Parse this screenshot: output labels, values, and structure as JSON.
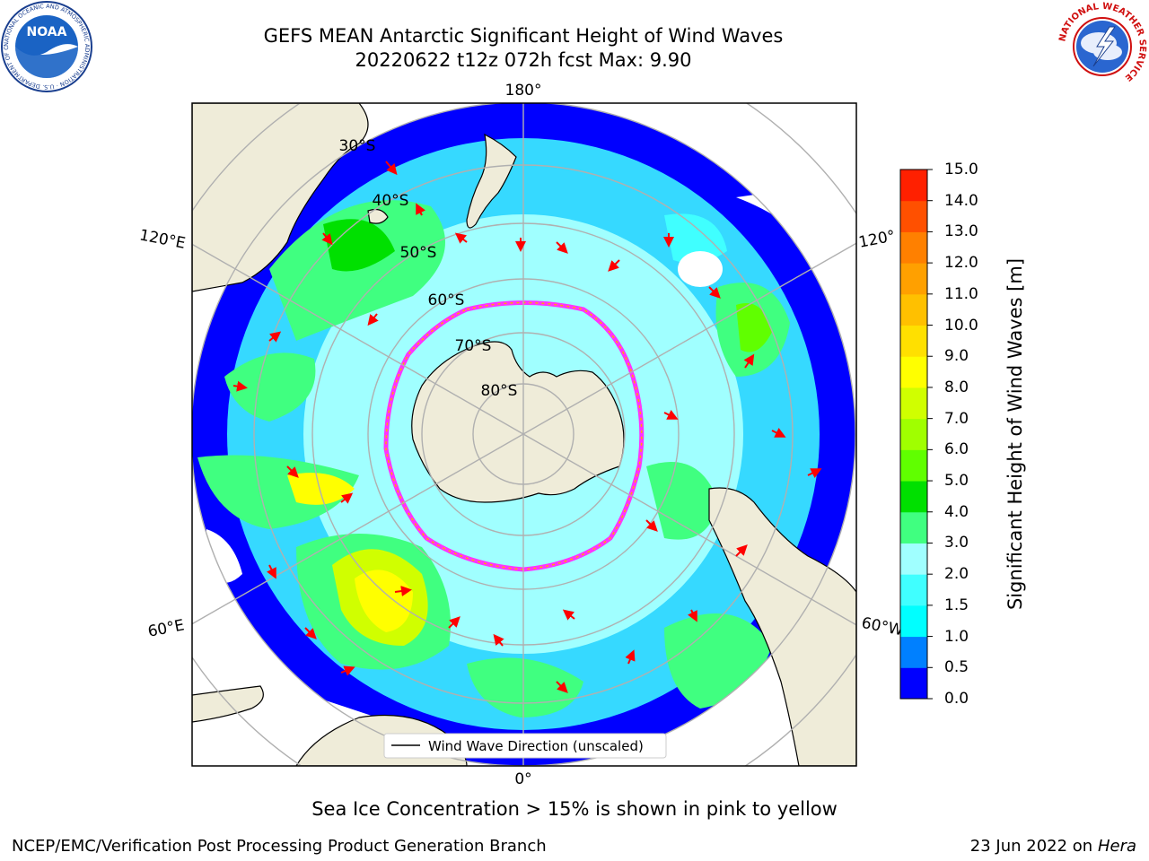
{
  "title": {
    "line1": "GEFS MEAN Antarctic Significant Height of Wind Waves",
    "line2": "20220622 t12z 072h fcst   Max: 9.90"
  },
  "map": {
    "projection": "south-polar-stereographic",
    "longitude_labels": [
      "180°",
      "120°E",
      "120°",
      "60°E",
      "60°W",
      "0°"
    ],
    "latitude_labels": [
      "30°S",
      "40°S",
      "50°S",
      "60°S",
      "70°S",
      "80°S"
    ],
    "legend_label": "Wind Wave Direction (unscaled)",
    "arrow_color": "#ff0000",
    "land_color": "#efecd9",
    "ice_edge_colors": [
      "#ff33ff",
      "#ffaa00",
      "#ffee00"
    ]
  },
  "colorbar": {
    "title": "Significant Height of Wind Waves [m]",
    "ticks": [
      "0.0",
      "0.5",
      "1.0",
      "1.5",
      "2.0",
      "3.0",
      "4.0",
      "5.0",
      "6.0",
      "7.0",
      "8.0",
      "9.0",
      "10.0",
      "11.0",
      "12.0",
      "13.0",
      "14.0",
      "15.0"
    ],
    "colors": [
      "#0000ff",
      "#0080ff",
      "#00ffff",
      "#40ffff",
      "#a0ffff",
      "#40ff80",
      "#00e000",
      "#60ff00",
      "#a0ff00",
      "#d0ff00",
      "#ffff00",
      "#ffe000",
      "#ffc000",
      "#ffa000",
      "#ff8000",
      "#ff5000",
      "#ff2000"
    ]
  },
  "subtitle": "Sea Ice Concentration > 15% is shown in pink to yellow",
  "footer": {
    "left": "NCEP/EMC/Verification Post Processing Product Generation Branch",
    "right_date": "23 Jun 2022 on",
    "right_host": "Hera"
  },
  "logos": {
    "noaa_text": "NOAA",
    "noaa_ring": "NATIONAL OCEANIC AND ATMOSPHERIC ADMINISTRATION · U.S. DEPARTMENT OF COMMERCE",
    "nws_ring": "NATIONAL WEATHER SERVICE"
  }
}
